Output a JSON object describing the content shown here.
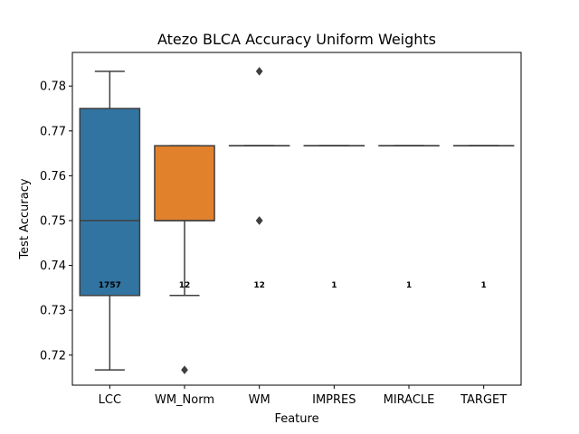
{
  "chart_data": {
    "type": "box",
    "title": "Atezo BLCA Accuracy Uniform Weights",
    "xlabel": "Feature",
    "ylabel": "Test Accuracy",
    "ylim": [
      0.7133,
      0.7875
    ],
    "yticks": [
      0.72,
      0.73,
      0.74,
      0.75,
      0.76,
      0.77,
      0.78
    ],
    "ytick_labels": [
      "0.72",
      "0.73",
      "0.74",
      "0.75",
      "0.76",
      "0.77",
      "0.78"
    ],
    "grid": false,
    "count_label_y": 0.7357,
    "categories": [
      "LCC",
      "WM_Norm",
      "WM",
      "IMPRES",
      "MIRACLE",
      "TARGET"
    ],
    "boxes": [
      {
        "category": "LCC",
        "color": "#3274a1",
        "whisker_low": 0.7167,
        "q1": 0.7333,
        "median": 0.75,
        "q3": 0.775,
        "whisker_high": 0.7833,
        "outliers": [],
        "count": "1757"
      },
      {
        "category": "WM_Norm",
        "color": "#e1812c",
        "whisker_low": 0.7333,
        "q1": 0.75,
        "median": 0.75,
        "q3": 0.7667,
        "whisker_high": 0.7667,
        "outliers": [
          0.7167
        ],
        "count": "12"
      },
      {
        "category": "WM",
        "color": "#3a923a",
        "whisker_low": 0.7667,
        "q1": 0.7667,
        "median": 0.7667,
        "q3": 0.7667,
        "whisker_high": 0.7667,
        "outliers": [
          0.7833,
          0.75,
          0.75
        ],
        "count": "12"
      },
      {
        "category": "IMPRES",
        "color": "#c03d3e",
        "whisker_low": 0.7667,
        "q1": 0.7667,
        "median": 0.7667,
        "q3": 0.7667,
        "whisker_high": 0.7667,
        "outliers": [],
        "count": "1"
      },
      {
        "category": "MIRACLE",
        "color": "#9372b2",
        "whisker_low": 0.7667,
        "q1": 0.7667,
        "median": 0.7667,
        "q3": 0.7667,
        "whisker_high": 0.7667,
        "outliers": [],
        "count": "1"
      },
      {
        "category": "TARGET",
        "color": "#845b53",
        "whisker_low": 0.7667,
        "q1": 0.7667,
        "median": 0.7667,
        "q3": 0.7667,
        "whisker_high": 0.7667,
        "outliers": [],
        "count": "1"
      }
    ]
  }
}
